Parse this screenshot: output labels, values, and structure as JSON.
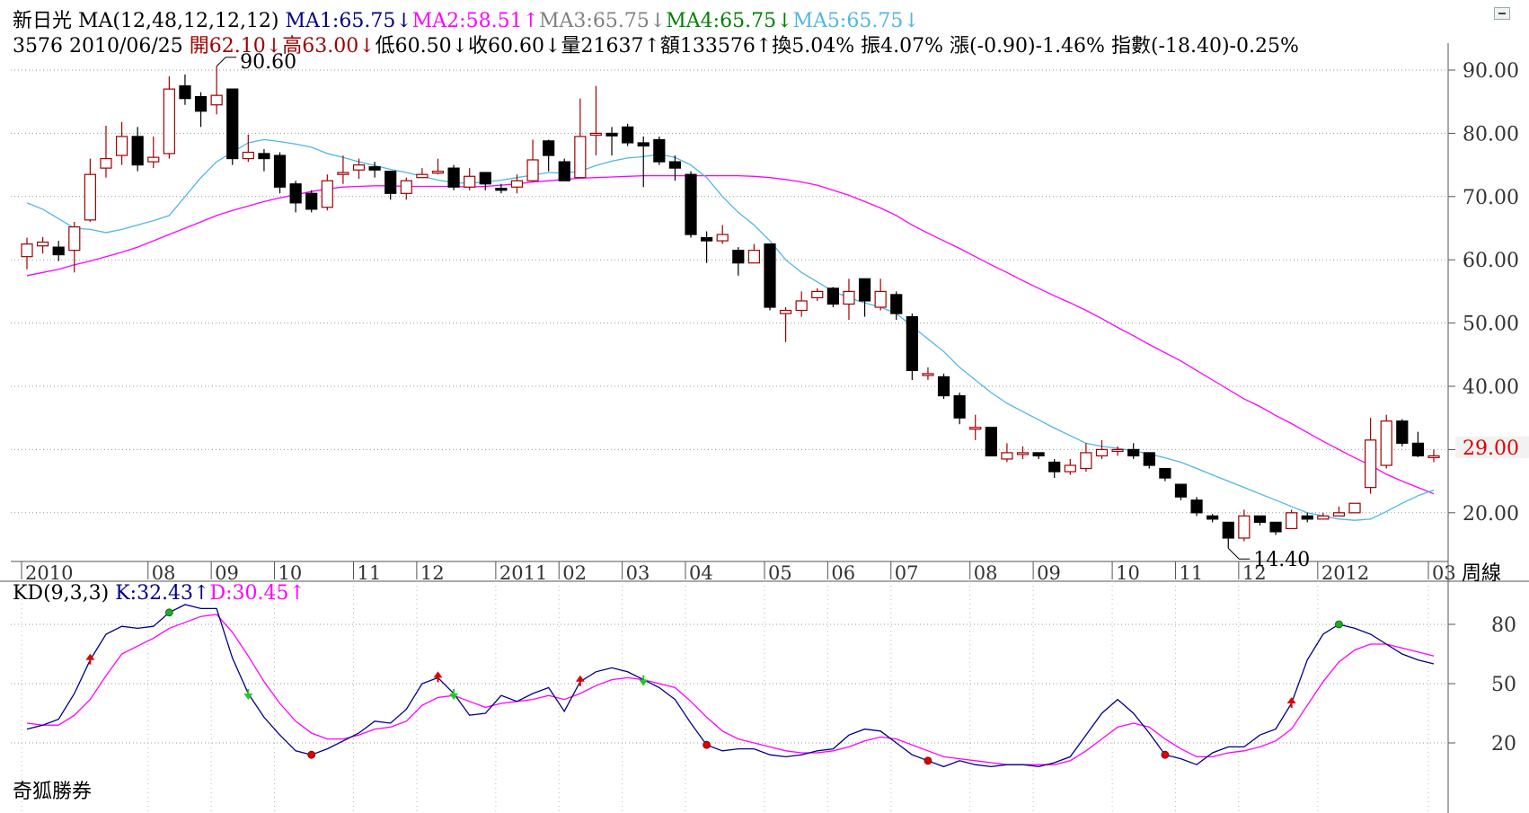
{
  "header": {
    "line1": [
      {
        "text": "新日光 MA(12,48,12,12,12) ",
        "color": "#000000"
      },
      {
        "text": "MA1:65.75↓",
        "color": "#00008b"
      },
      {
        "text": "MA2:58.51↑",
        "color": "#ff00ff"
      },
      {
        "text": "MA3:65.75↓",
        "color": "#808080"
      },
      {
        "text": "MA4:65.75↓",
        "color": "#008000"
      },
      {
        "text": "MA5:65.75↓",
        "color": "#4fb6e6"
      }
    ],
    "line2": [
      {
        "text": "3576 2010/06/25 ",
        "color": "#000000"
      },
      {
        "text": "開62.10↓",
        "color": "#a00000"
      },
      {
        "text": "高63.00↓",
        "color": "#a00000"
      },
      {
        "text": "低60.50↓收60.60↓量21637↑額133576↑換5.04% 振4.07% 漲(-0.90)-1.46% 指數(-18.40)-0.25%",
        "color": "#000000"
      }
    ]
  },
  "period_label": "周線",
  "last_price_label": "29.00",
  "kd_title": [
    {
      "text": "KD(9,3,3) ",
      "color": "#000000"
    },
    {
      "text": "K:32.43↑",
      "color": "#00008b"
    },
    {
      "text": "D:30.45↑",
      "color": "#ff00ff"
    }
  ],
  "broker": "奇狐勝券",
  "colors": {
    "up": "#a00000",
    "down": "#000000",
    "ma_long": "#ff00ff",
    "ma_short": "#4fb6e6",
    "k": "#00008b",
    "d": "#ff00ff",
    "grid": "#999999"
  },
  "chart_data": [
    {
      "type": "candlestick",
      "name": "price",
      "ylim": [
        10,
        100
      ],
      "y_ticks": [
        "20.00",
        "30.00",
        "40.00",
        "50.00",
        "60.00",
        "70.00",
        "80.00",
        "90.00"
      ],
      "y_tick_values": [
        20,
        30,
        40,
        50,
        60,
        70,
        80,
        90
      ],
      "x_labels": [
        {
          "label": "2010",
          "i": 0
        },
        {
          "label": "08",
          "i": 8
        },
        {
          "label": "09",
          "i": 12
        },
        {
          "label": "10",
          "i": 16
        },
        {
          "label": "11",
          "i": 21
        },
        {
          "label": "12",
          "i": 25
        },
        {
          "label": "2011",
          "i": 30
        },
        {
          "label": "02",
          "i": 34
        },
        {
          "label": "03",
          "i": 38
        },
        {
          "label": "04",
          "i": 42
        },
        {
          "label": "05",
          "i": 47
        },
        {
          "label": "06",
          "i": 51
        },
        {
          "label": "07",
          "i": 55
        },
        {
          "label": "08",
          "i": 60
        },
        {
          "label": "09",
          "i": 64
        },
        {
          "label": "10",
          "i": 69
        },
        {
          "label": "11",
          "i": 73
        },
        {
          "label": "12",
          "i": 77
        },
        {
          "label": "2012",
          "i": 82
        },
        {
          "label": "03",
          "i": 89
        }
      ],
      "annotations": [
        {
          "text": "90.60",
          "value": 90.6,
          "i": 12
        },
        {
          "text": "14.40",
          "value": 14.4,
          "i": 76
        }
      ],
      "candles": [
        [
          60.5,
          62.5,
          63.5,
          58.5
        ],
        [
          62.2,
          62.8,
          63.6,
          61.0
        ],
        [
          62.0,
          60.8,
          63.0,
          59.8
        ],
        [
          61.5,
          65.2,
          66.0,
          58.0
        ],
        [
          66.3,
          73.5,
          76.0,
          66.0
        ],
        [
          74.5,
          76.0,
          81.2,
          73.0
        ],
        [
          76.5,
          79.5,
          81.8,
          75.0
        ],
        [
          79.5,
          75.0,
          81.0,
          74.0
        ],
        [
          75.5,
          76.2,
          79.5,
          74.5
        ],
        [
          76.8,
          87.0,
          89.0,
          76.0
        ],
        [
          87.5,
          85.5,
          89.3,
          84.5
        ],
        [
          85.8,
          83.5,
          86.5,
          81.0
        ],
        [
          84.5,
          86.0,
          90.6,
          83.0
        ],
        [
          87.0,
          76.0,
          87.0,
          75.0
        ],
        [
          76.0,
          77.0,
          79.8,
          75.5
        ],
        [
          76.8,
          76.0,
          77.5,
          74.0
        ],
        [
          76.5,
          71.5,
          77.0,
          70.5
        ],
        [
          72.0,
          69.0,
          72.5,
          67.5
        ],
        [
          70.5,
          68.0,
          71.0,
          67.5
        ],
        [
          68.3,
          72.5,
          73.5,
          67.8
        ],
        [
          73.5,
          73.8,
          76.5,
          72.0
        ],
        [
          74.2,
          75.0,
          76.0,
          72.8
        ],
        [
          74.7,
          74.2,
          75.5,
          73.0
        ],
        [
          74.0,
          70.5,
          74.0,
          69.5
        ],
        [
          70.5,
          72.5,
          73.0,
          69.5
        ],
        [
          73.0,
          73.5,
          74.5,
          73.0
        ],
        [
          73.7,
          74.0,
          76.0,
          73.5
        ],
        [
          74.5,
          71.5,
          75.0,
          71.0
        ],
        [
          71.5,
          73.2,
          74.5,
          71.0
        ],
        [
          73.8,
          72.0,
          73.8,
          71.0
        ],
        [
          71.3,
          71.0,
          72.0,
          70.5
        ],
        [
          71.5,
          72.5,
          73.5,
          70.5
        ],
        [
          72.5,
          75.8,
          79.0,
          72.3
        ],
        [
          78.8,
          76.5,
          79.0,
          74.0
        ],
        [
          75.5,
          72.5,
          76.0,
          72.5
        ],
        [
          73.0,
          79.5,
          85.5,
          73.0
        ],
        [
          80.0,
          80.0,
          87.5,
          76.5
        ],
        [
          80.0,
          79.6,
          81.0,
          76.5
        ],
        [
          81.0,
          78.5,
          81.5,
          78.0
        ],
        [
          78.5,
          78.0,
          79.5,
          71.5
        ],
        [
          79.0,
          75.5,
          79.5,
          75.0
        ],
        [
          75.5,
          74.5,
          76.5,
          72.5
        ],
        [
          73.5,
          64.0,
          74.0,
          63.5
        ],
        [
          63.5,
          63.0,
          64.5,
          59.5
        ],
        [
          63.0,
          64.0,
          65.5,
          62.5
        ],
        [
          61.5,
          59.5,
          62.0,
          57.5
        ],
        [
          59.5,
          61.5,
          62.5,
          59.5
        ],
        [
          62.5,
          52.5,
          62.5,
          52.0
        ],
        [
          51.5,
          52.0,
          52.5,
          47.0
        ],
        [
          52.0,
          53.5,
          55.0,
          51.0
        ],
        [
          54.0,
          55.0,
          55.5,
          53.5
        ],
        [
          55.5,
          53.0,
          55.7,
          52.5
        ],
        [
          53.0,
          55.0,
          57.0,
          50.5
        ],
        [
          57.0,
          53.5,
          57.0,
          51.0
        ],
        [
          52.5,
          55.0,
          57.0,
          52.0
        ],
        [
          54.5,
          51.5,
          55.0,
          50.5
        ],
        [
          51.0,
          42.5,
          51.5,
          41.0
        ],
        [
          42.0,
          42.0,
          43.0,
          41.0
        ],
        [
          41.5,
          38.5,
          42.0,
          38.0
        ],
        [
          38.5,
          35.0,
          39.0,
          34.0
        ],
        [
          33.5,
          33.5,
          35.5,
          31.5
        ],
        [
          33.5,
          29.0,
          33.5,
          29.0
        ],
        [
          28.5,
          29.5,
          31.0,
          28.0
        ],
        [
          29.5,
          29.5,
          30.5,
          28.5
        ],
        [
          29.5,
          29.0,
          29.5,
          28.5
        ],
        [
          28.0,
          26.5,
          28.5,
          25.5
        ],
        [
          26.5,
          27.5,
          28.5,
          26.0
        ],
        [
          27.0,
          29.5,
          31.0,
          26.5
        ],
        [
          29.0,
          30.0,
          31.5,
          28.5
        ],
        [
          30.0,
          30.0,
          30.5,
          29.0
        ],
        [
          30.0,
          29.0,
          31.0,
          28.5
        ],
        [
          29.5,
          27.5,
          29.5,
          27.0
        ],
        [
          27.0,
          25.5,
          27.0,
          25.0
        ],
        [
          24.5,
          22.5,
          24.5,
          22.0
        ],
        [
          22.0,
          20.0,
          22.5,
          19.5
        ],
        [
          19.5,
          19.0,
          19.8,
          18.5
        ],
        [
          18.5,
          16.0,
          18.5,
          14.4
        ],
        [
          16.0,
          19.5,
          20.5,
          15.5
        ],
        [
          19.5,
          18.5,
          19.5,
          18.0
        ],
        [
          18.5,
          17.0,
          18.5,
          16.5
        ],
        [
          17.5,
          20.0,
          20.5,
          17.5
        ],
        [
          19.5,
          19.0,
          20.0,
          18.5
        ],
        [
          19.0,
          19.5,
          20.0,
          19.0
        ],
        [
          19.5,
          20.0,
          21.0,
          19.5
        ],
        [
          20.0,
          21.5,
          21.5,
          20.0
        ],
        [
          24.0,
          31.5,
          35.0,
          23.0
        ],
        [
          27.5,
          34.5,
          35.5,
          27.0
        ],
        [
          34.5,
          31.0,
          34.8,
          30.5
        ],
        [
          31.0,
          29.0,
          32.8,
          28.8
        ],
        [
          29.0,
          29.0,
          30.0,
          28.0
        ]
      ],
      "ma_short": [
        69.0,
        68.0,
        66.5,
        65.0,
        64.8,
        64.3,
        64.8,
        65.5,
        66.2,
        67.0,
        70.0,
        73.0,
        75.5,
        77.0,
        78.5,
        79.0,
        78.7,
        78.3,
        77.8,
        76.8,
        76.2,
        75.5,
        74.9,
        74.3,
        73.8,
        73.2,
        72.6,
        72.2,
        72.1,
        72.3,
        72.6,
        73.0,
        73.4,
        73.8,
        73.7,
        74.0,
        74.9,
        75.6,
        76.1,
        76.3,
        76.7,
        76.2,
        75.0,
        73.0,
        70.0,
        67.5,
        65.5,
        63.0,
        60.0,
        58.0,
        56.5,
        55.0,
        54.0,
        53.2,
        52.5,
        51.5,
        49.5,
        47.5,
        45.5,
        43.0,
        41.0,
        39.0,
        37.3,
        36.0,
        34.7,
        33.4,
        32.2,
        31.0,
        30.5,
        30.2,
        29.8,
        29.3,
        28.7,
        28.0,
        27.0,
        26.0,
        25.0,
        24.0,
        23.0,
        22.0,
        21.0,
        20.0,
        19.5,
        19.0,
        18.8,
        19.0,
        20.2,
        21.5,
        22.7,
        23.6
      ],
      "ma_long": [
        57.5,
        58.0,
        58.5,
        59.2,
        59.8,
        60.5,
        61.2,
        62.0,
        63.0,
        64.0,
        65.0,
        66.0,
        67.0,
        67.8,
        68.5,
        69.2,
        69.8,
        70.3,
        70.8,
        71.2,
        71.5,
        71.6,
        71.7,
        71.7,
        71.6,
        71.6,
        71.6,
        71.6,
        71.5,
        71.6,
        71.8,
        72.0,
        72.3,
        72.5,
        72.7,
        72.9,
        73.0,
        73.1,
        73.2,
        73.3,
        73.3,
        73.3,
        73.3,
        73.3,
        73.3,
        73.3,
        73.2,
        73.0,
        72.7,
        72.3,
        71.8,
        71.0,
        70.2,
        69.2,
        68.2,
        67.0,
        65.5,
        64.2,
        63.0,
        61.8,
        60.5,
        59.2,
        58.0,
        56.7,
        55.5,
        54.3,
        53.2,
        52.0,
        50.7,
        49.3,
        48.0,
        46.6,
        45.3,
        44.0,
        42.5,
        41.0,
        39.5,
        38.0,
        36.8,
        35.4,
        34.1,
        32.7,
        31.3,
        30.0,
        28.7,
        27.5,
        26.1,
        25.0,
        24.0,
        23.0
      ]
    },
    {
      "type": "line",
      "name": "KD",
      "ylim": [
        0,
        100
      ],
      "y_ticks": [
        "20",
        "50",
        "80"
      ],
      "y_tick_values": [
        20,
        50,
        80
      ],
      "series": [
        {
          "name": "K",
          "values": [
            27,
            29,
            32,
            45,
            62,
            75,
            79,
            78,
            79,
            86,
            90,
            88,
            88,
            63,
            45,
            33,
            24,
            16,
            14,
            17,
            21,
            25,
            31,
            30,
            37,
            50,
            53,
            45,
            34,
            35,
            44,
            41,
            45,
            48,
            36,
            51,
            56,
            58,
            56,
            52,
            48,
            42,
            30,
            19,
            16,
            17,
            17,
            14,
            13,
            14,
            16,
            17,
            24,
            27,
            26,
            20,
            14,
            11,
            8,
            11,
            9,
            8,
            9,
            9,
            8,
            10,
            13,
            24,
            35,
            42,
            35,
            25,
            14,
            12,
            9,
            15,
            18,
            18,
            24,
            27,
            40,
            62,
            75,
            80,
            78,
            75,
            70,
            65,
            62,
            60
          ],
          "line": "k"
        },
        {
          "name": "D",
          "values": [
            30,
            29,
            29,
            34,
            42,
            54,
            65,
            69,
            73,
            78,
            81,
            84,
            85,
            76,
            64,
            51,
            40,
            31,
            25,
            22,
            22,
            24,
            27,
            28,
            31,
            39,
            43,
            44,
            41,
            38,
            40,
            41,
            42,
            44,
            42,
            45,
            49,
            52,
            53,
            52,
            50,
            48,
            41,
            33,
            26,
            22,
            20,
            18,
            16,
            15,
            15,
            16,
            18,
            21,
            23,
            22,
            19,
            16,
            13,
            12,
            11,
            10,
            9,
            9,
            9,
            9,
            11,
            16,
            22,
            28,
            30,
            28,
            22,
            17,
            13,
            13,
            15,
            16,
            18,
            21,
            27,
            39,
            51,
            61,
            67,
            70,
            70,
            68,
            66,
            64
          ]
        }
      ],
      "markers": [
        {
          "i": 4,
          "type": "up"
        },
        {
          "i": 9,
          "type": "dot-green"
        },
        {
          "i": 14,
          "type": "down"
        },
        {
          "i": 18,
          "type": "dot-red"
        },
        {
          "i": 26,
          "type": "up"
        },
        {
          "i": 27,
          "type": "down"
        },
        {
          "i": 35,
          "type": "up"
        },
        {
          "i": 39,
          "type": "down"
        },
        {
          "i": 43,
          "type": "dot-red"
        },
        {
          "i": 57,
          "type": "dot-red"
        },
        {
          "i": 72,
          "type": "dot-red"
        },
        {
          "i": 80,
          "type": "up"
        },
        {
          "i": 83,
          "type": "dot-green"
        }
      ]
    }
  ]
}
